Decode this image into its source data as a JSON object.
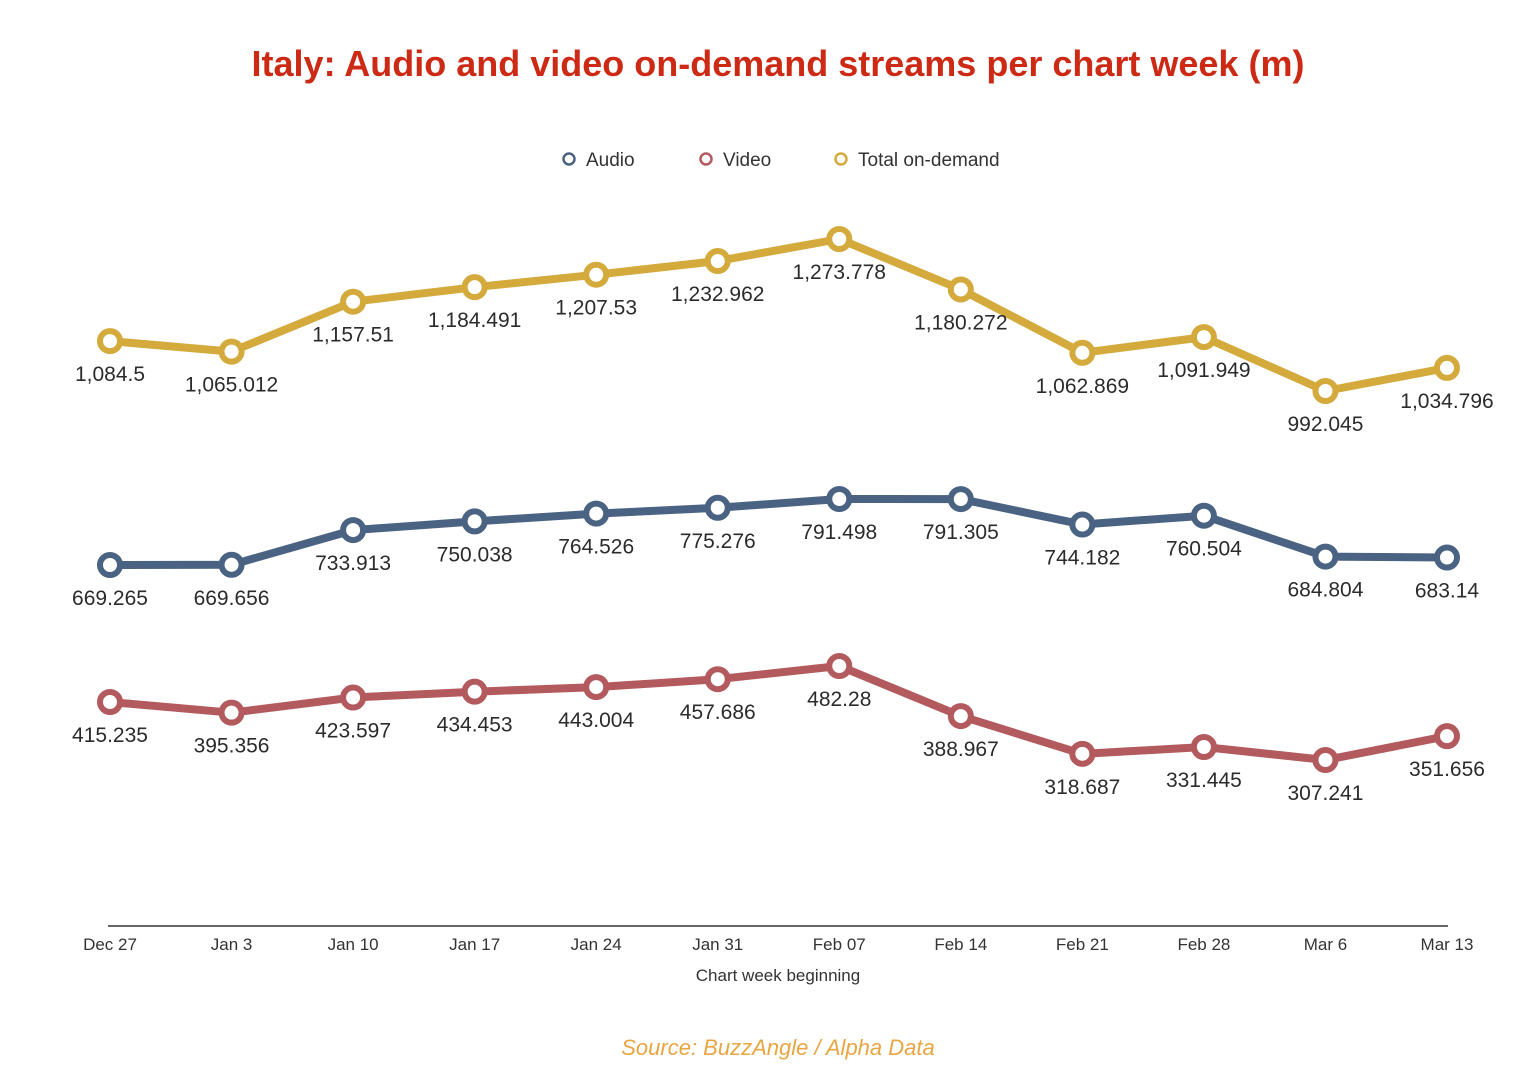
{
  "chart_data": {
    "type": "line",
    "title": "Italy: Audio and video on-demand streams per chart week (m)",
    "xlabel": "Chart week beginning",
    "ylabel": "",
    "categories": [
      "Dec 27",
      "Jan 3",
      "Jan 10",
      "Jan 17",
      "Jan 24",
      "Jan 31",
      "Feb 07",
      "Feb 14",
      "Feb 21",
      "Feb 28",
      "Mar 6",
      "Mar 13"
    ],
    "legend_position": "top-center",
    "grid": false,
    "y_axis_visible": false,
    "series": [
      {
        "name": "Audio",
        "color": "#4a6383",
        "values": [
          669.265,
          669.656,
          733.913,
          750.038,
          764.526,
          775.276,
          791.498,
          791.305,
          744.182,
          760.504,
          684.804,
          683.14
        ],
        "labels": [
          "669.265",
          "669.656",
          "733.913",
          "750.038",
          "764.526",
          "775.276",
          "791.498",
          "791.305",
          "744.182",
          "760.504",
          "684.804",
          "683.14"
        ]
      },
      {
        "name": "Video",
        "color": "#b35a5e",
        "values": [
          415.235,
          395.356,
          423.597,
          434.453,
          443.004,
          457.686,
          482.28,
          388.967,
          318.687,
          331.445,
          307.241,
          351.656
        ],
        "labels": [
          "415.235",
          "395.356",
          "423.597",
          "434.453",
          "443.004",
          "457.686",
          "482.28",
          "388.967",
          "318.687",
          "331.445",
          "307.241",
          "351.656"
        ]
      },
      {
        "name": "Total on-demand",
        "color": "#d4aa3c",
        "values": [
          1084.5,
          1065.012,
          1157.51,
          1184.491,
          1207.53,
          1232.962,
          1273.778,
          1180.272,
          1062.869,
          1091.949,
          992.045,
          1034.796
        ],
        "labels": [
          "1,084.5",
          "1,065.012",
          "1,157.51",
          "1,184.491",
          "1,207.53",
          "1,232.962",
          "1,273.778",
          "1,180.272",
          "1,062.869",
          "1,091.949",
          "992.045",
          "1,034.796"
        ]
      }
    ],
    "source": "Source: BuzzAngle / Alpha Data"
  }
}
